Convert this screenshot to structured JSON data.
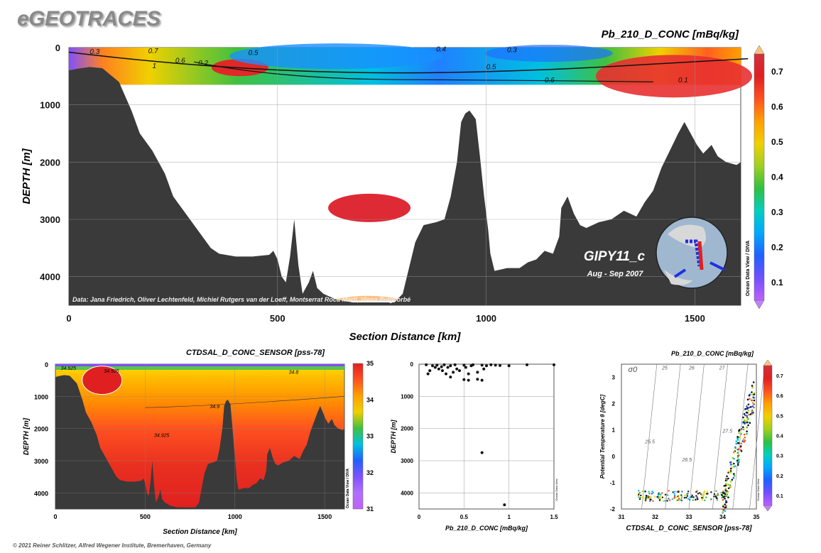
{
  "brand": "eGEOTRACES",
  "copyright": "© 2021 Reiner Schlitzer, Alfred Wegener Institute, Bremerhaven, Germany",
  "colormap": [
    "#c060ff",
    "#7050ff",
    "#2060ff",
    "#00a8ff",
    "#00d0c0",
    "#30c040",
    "#a0d020",
    "#f0d000",
    "#ffa000",
    "#ff5020",
    "#e02020",
    "#d03040",
    "#ffc080"
  ],
  "chart_data": [
    {
      "type": "section",
      "title": "Pb_210_D_CONC [mBq/kg]",
      "xlabel": "Section Distance [km]",
      "ylabel": "DEPTH [m]",
      "xlim": [
        0,
        1610
      ],
      "ylim": [
        4500,
        0
      ],
      "xticks": [
        0,
        500,
        1000,
        1500
      ],
      "yticks": [
        0,
        1000,
        2000,
        3000,
        4000
      ],
      "colorbar": {
        "ticks": [
          0.1,
          0.2,
          0.3,
          0.4,
          0.5,
          0.6,
          0.7
        ],
        "min": 0.05,
        "max": 0.75
      },
      "contour_labels": [
        "0.3",
        "0.7",
        "0.5",
        "0.6",
        "0.2",
        "1",
        "0.4",
        "0.3",
        "0.5",
        "0.6",
        "0.1"
      ],
      "station_label": "GIPY11_c",
      "date_label": "Aug - Sep 2007",
      "data_credit": "Data: Jana Friedrich, Oliver Lechtenfeld, Michiel Rutgers van der Loeff, Montserrat Roca Marti, Viena Puigcorbé",
      "watermark": "Ocean Data View / DIVA",
      "bathymetry": [
        [
          0,
          400
        ],
        [
          20,
          370
        ],
        [
          50,
          340
        ],
        [
          80,
          360
        ],
        [
          120,
          600
        ],
        [
          150,
          1100
        ],
        [
          170,
          1500
        ],
        [
          200,
          1800
        ],
        [
          230,
          2200
        ],
        [
          250,
          2600
        ],
        [
          270,
          2800
        ],
        [
          290,
          3000
        ],
        [
          310,
          3200
        ],
        [
          340,
          3500
        ],
        [
          360,
          3600
        ],
        [
          400,
          3650
        ],
        [
          440,
          3650
        ],
        [
          480,
          3620
        ],
        [
          490,
          3550
        ],
        [
          500,
          3700
        ],
        [
          510,
          4000
        ],
        [
          520,
          4100
        ],
        [
          530,
          3650
        ],
        [
          540,
          3000
        ],
        [
          550,
          3800
        ],
        [
          560,
          4300
        ],
        [
          575,
          4100
        ],
        [
          585,
          3900
        ],
        [
          595,
          4200
        ],
        [
          610,
          4300
        ],
        [
          640,
          4400
        ],
        [
          680,
          4450
        ],
        [
          780,
          4450
        ],
        [
          800,
          4300
        ],
        [
          820,
          3700
        ],
        [
          830,
          3400
        ],
        [
          850,
          3100
        ],
        [
          880,
          3050
        ],
        [
          900,
          3000
        ],
        [
          915,
          2600
        ],
        [
          930,
          2000
        ],
        [
          940,
          1300
        ],
        [
          950,
          1150
        ],
        [
          960,
          1100
        ],
        [
          975,
          1250
        ],
        [
          985,
          1900
        ],
        [
          995,
          2600
        ],
        [
          1005,
          3200
        ],
        [
          1010,
          3600
        ],
        [
          1020,
          3900
        ],
        [
          1050,
          3850
        ],
        [
          1080,
          3850
        ],
        [
          1100,
          3750
        ],
        [
          1120,
          3700
        ],
        [
          1140,
          3550
        ],
        [
          1160,
          3600
        ],
        [
          1175,
          3300
        ],
        [
          1180,
          2800
        ],
        [
          1195,
          2600
        ],
        [
          1210,
          2900
        ],
        [
          1225,
          3100
        ],
        [
          1240,
          3150
        ],
        [
          1270,
          3050
        ],
        [
          1300,
          3000
        ],
        [
          1330,
          2850
        ],
        [
          1360,
          2950
        ],
        [
          1380,
          2700
        ],
        [
          1400,
          2500
        ],
        [
          1420,
          2100
        ],
        [
          1440,
          1800
        ],
        [
          1460,
          1500
        ],
        [
          1475,
          1300
        ],
        [
          1490,
          1500
        ],
        [
          1505,
          1700
        ],
        [
          1520,
          1850
        ],
        [
          1540,
          1700
        ],
        [
          1555,
          1900
        ],
        [
          1575,
          2000
        ],
        [
          1600,
          2050
        ],
        [
          1610,
          2000
        ]
      ],
      "max_depth": 4500
    },
    {
      "type": "section",
      "title": "CTDSAL_D_CONC_SENSOR [pss-78]",
      "xlabel": "Section Distance [km]",
      "ylabel": "DEPTH [m]",
      "xlim": [
        0,
        1610
      ],
      "ylim": [
        4500,
        0
      ],
      "xticks": [
        0,
        500,
        1000,
        1500
      ],
      "yticks": [
        0,
        1000,
        2000,
        3000,
        4000
      ],
      "colorbar": {
        "ticks": [
          31,
          32,
          33,
          34,
          35
        ],
        "min": 31,
        "max": 35
      },
      "contour_labels": [
        "34.925",
        "34.8",
        "34.9",
        "34.925",
        "34.9",
        "34.925"
      ],
      "watermark": "Ocean Data View / DIVA"
    },
    {
      "type": "scatter",
      "xlabel": "Pb_210_D_CONC [mBq/kg]",
      "ylabel": "DEPTH [m]",
      "xlim": [
        0,
        1.5
      ],
      "ylim": [
        4500,
        0
      ],
      "xticks": [
        0,
        0.5,
        1,
        1.5
      ],
      "yticks": [
        0,
        1000,
        2000,
        3000,
        4000
      ],
      "watermark": "Ocean Data View",
      "points": [
        [
          0.08,
          20
        ],
        [
          0.1,
          300
        ],
        [
          0.12,
          200
        ],
        [
          0.15,
          50
        ],
        [
          0.18,
          100
        ],
        [
          0.2,
          30
        ],
        [
          0.22,
          150
        ],
        [
          0.25,
          80
        ],
        [
          0.26,
          200
        ],
        [
          0.28,
          20
        ],
        [
          0.3,
          300
        ],
        [
          0.32,
          100
        ],
        [
          0.35,
          50
        ],
        [
          0.38,
          250
        ],
        [
          0.4,
          20
        ],
        [
          0.42,
          150
        ],
        [
          0.45,
          200
        ],
        [
          0.5,
          30
        ],
        [
          0.52,
          100
        ],
        [
          0.55,
          300
        ],
        [
          0.58,
          50
        ],
        [
          0.6,
          20
        ],
        [
          0.65,
          250
        ],
        [
          0.7,
          30
        ],
        [
          0.72,
          150
        ],
        [
          0.75,
          50
        ],
        [
          0.8,
          20
        ],
        [
          0.85,
          30
        ],
        [
          0.9,
          40
        ],
        [
          1.0,
          50
        ],
        [
          1.2,
          20
        ],
        [
          1.5,
          20
        ],
        [
          0.5,
          480
        ],
        [
          0.55,
          500
        ],
        [
          0.65,
          470
        ],
        [
          0.7,
          500
        ],
        [
          0.35,
          400
        ],
        [
          0.7,
          2750
        ],
        [
          0.95,
          4370
        ]
      ]
    },
    {
      "type": "scatter",
      "title": "Pb_210_D_CONC [mBq/kg]",
      "xlabel": "CTDSAL_D_CONC_SENSOR [pss-78]",
      "ylabel": "Potential Temperature θ [degC]",
      "xlim": [
        31,
        35
      ],
      "ylim": [
        -2,
        3.5
      ],
      "xticks": [
        31,
        32,
        33,
        34,
        35
      ],
      "yticks": [
        -2,
        -1,
        0,
        1,
        2,
        3
      ],
      "colorbar": {
        "ticks": [
          0.1,
          0.2,
          0.3,
          0.4,
          0.5,
          0.6,
          0.7
        ],
        "min": 0.05,
        "max": 0.75
      },
      "isopycnal_labels": [
        "σ0",
        "25",
        "26",
        "27",
        "25.5",
        "26.5",
        "27.5"
      ],
      "watermark": "Ocean Data View"
    }
  ]
}
